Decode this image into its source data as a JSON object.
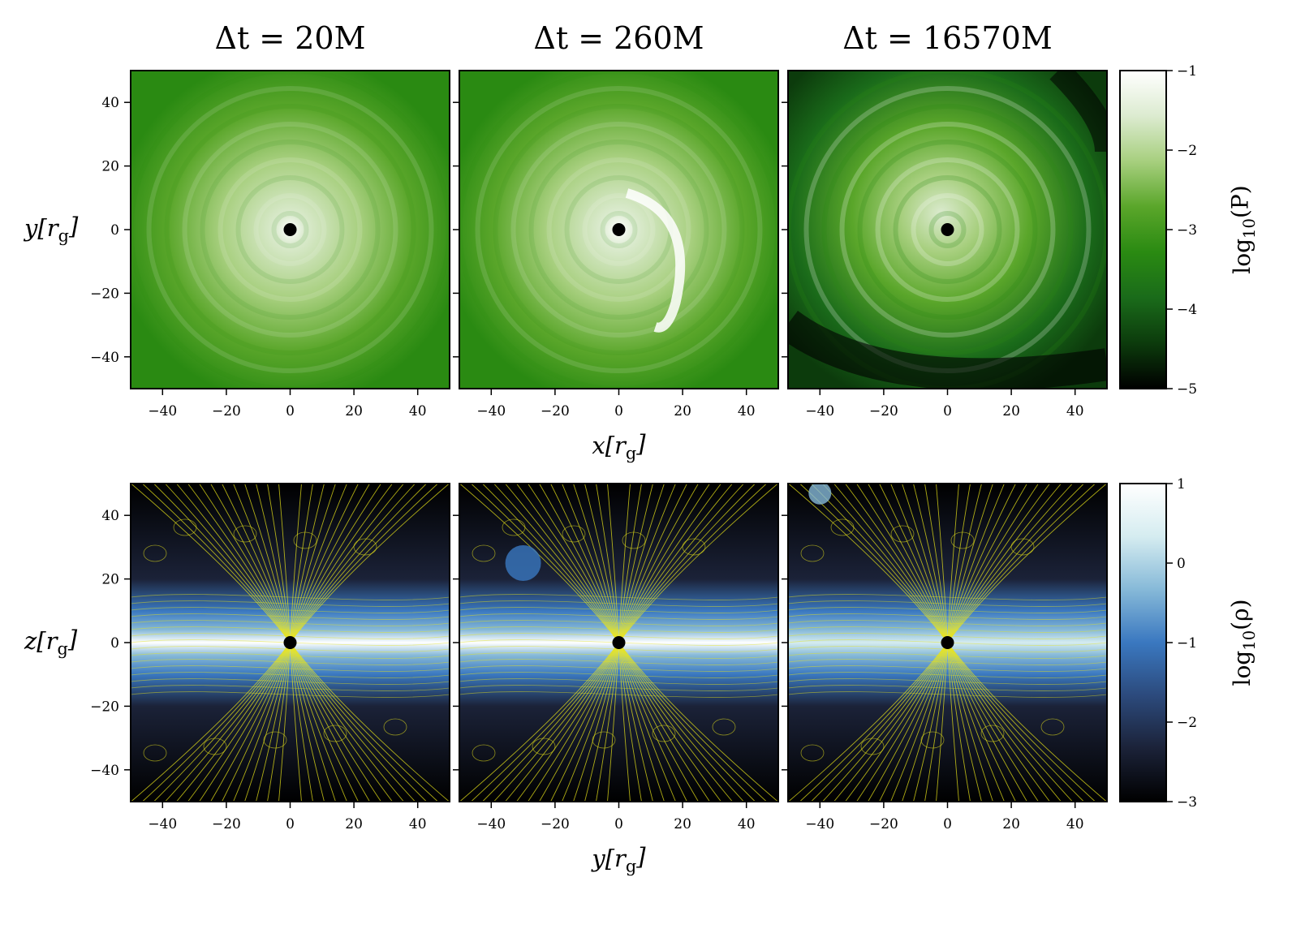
{
  "colors": {
    "pressure_cmap": [
      "#000000",
      "#0c3b0c",
      "#1a6b1a",
      "#2a8a12",
      "#5aa62a",
      "#a7cf7e",
      "#dcebd0",
      "#ffffff"
    ],
    "density_cmap": [
      "#000000",
      "#1b2238",
      "#2c4a7c",
      "#3a78c0",
      "#86b9d8",
      "#d5ecf0",
      "#ffffff"
    ],
    "streamline": "#e8e41a",
    "black_hole": "#000000"
  },
  "chart_data": [
    {
      "type": "heatmap",
      "title": "Δt = 20M",
      "row": "top",
      "xlabel": "",
      "ylabel": "y[r_g]",
      "xlim": [
        -50,
        50
      ],
      "ylim": [
        -50,
        50
      ],
      "xticks": [
        -40,
        -20,
        0,
        20,
        40
      ],
      "yticks": [
        -40,
        -20,
        0,
        20,
        40
      ],
      "colorbar_quantity": "log10(P)"
    },
    {
      "type": "heatmap",
      "title": "Δt = 260M",
      "row": "top",
      "xlabel": "x[r_g]",
      "ylabel": "",
      "xlim": [
        -50,
        50
      ],
      "ylim": [
        -50,
        50
      ],
      "xticks": [
        -40,
        -20,
        0,
        20,
        40
      ],
      "yticks": [
        -40,
        -20,
        0,
        20,
        40
      ],
      "colorbar_quantity": "log10(P)"
    },
    {
      "type": "heatmap",
      "title": "Δt = 16570M",
      "row": "top",
      "xlabel": "",
      "ylabel": "",
      "xlim": [
        -50,
        50
      ],
      "ylim": [
        -50,
        50
      ],
      "xticks": [
        -40,
        -20,
        0,
        20,
        40
      ],
      "yticks": [
        -40,
        -20,
        0,
        20,
        40
      ],
      "colorbar_quantity": "log10(P)"
    },
    {
      "type": "heatmap",
      "title": "",
      "row": "bottom",
      "xlabel": "",
      "ylabel": "z[r_g]",
      "xlim": [
        -50,
        50
      ],
      "ylim": [
        -50,
        50
      ],
      "xticks": [
        -40,
        -20,
        0,
        20,
        40
      ],
      "yticks": [
        -40,
        -20,
        0,
        20,
        40
      ],
      "colorbar_quantity": "log10(ρ)",
      "overlay": "magnetic field streamlines"
    },
    {
      "type": "heatmap",
      "title": "",
      "row": "bottom",
      "xlabel": "y[r_g]",
      "ylabel": "",
      "xlim": [
        -50,
        50
      ],
      "ylim": [
        -50,
        50
      ],
      "xticks": [
        -40,
        -20,
        0,
        20,
        40
      ],
      "yticks": [
        -40,
        -20,
        0,
        20,
        40
      ],
      "colorbar_quantity": "log10(ρ)",
      "overlay": "magnetic field streamlines"
    },
    {
      "type": "heatmap",
      "title": "",
      "row": "bottom",
      "xlabel": "",
      "ylabel": "",
      "xlim": [
        -50,
        50
      ],
      "ylim": [
        -50,
        50
      ],
      "xticks": [
        -40,
        -20,
        0,
        20,
        40
      ],
      "yticks": [
        -40,
        -20,
        0,
        20,
        40
      ],
      "colorbar_quantity": "log10(ρ)",
      "overlay": "magnetic field streamlines"
    }
  ],
  "colorbars": [
    {
      "label": "log10(P)",
      "range": [
        -5,
        -1
      ],
      "ticks": [
        -5,
        -4,
        -3,
        -2,
        -1
      ]
    },
    {
      "label": "log10(ρ)",
      "range": [
        -3,
        1
      ],
      "ticks": [
        -3,
        -2,
        -1,
        0,
        1
      ]
    }
  ]
}
